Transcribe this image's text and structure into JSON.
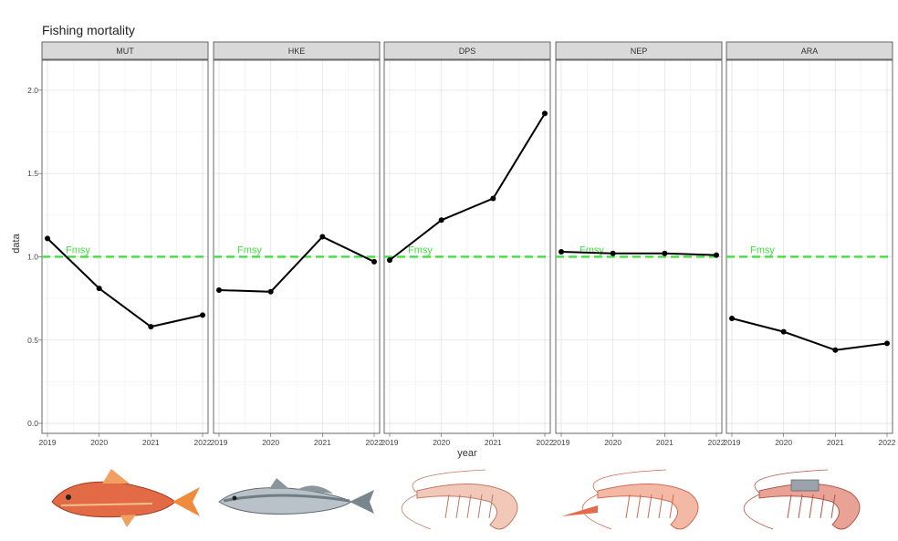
{
  "chart_data": {
    "type": "line",
    "title": "Fishing mortality",
    "xlabel": "year",
    "ylabel": "data",
    "x": [
      2019,
      2020,
      2021,
      2022
    ],
    "xticks": [
      "2019",
      "2020",
      "2021",
      "2022"
    ],
    "ylim": [
      -0.06,
      2.18
    ],
    "yticks": [
      "0.0",
      "0.5",
      "1.0",
      "1.5",
      "2.0"
    ],
    "ytick_values": [
      0.0,
      0.5,
      1.0,
      1.5,
      2.0
    ],
    "grid": true,
    "reference_line": {
      "label": "Fmsy",
      "value": 1.0,
      "color": "#44dd44",
      "style": "dashed"
    },
    "line_color": "#000000",
    "facets": [
      {
        "name": "MUT",
        "values": [
          1.11,
          0.81,
          0.58,
          0.65
        ],
        "species_icon": "red-mullet-fish-icon"
      },
      {
        "name": "HKE",
        "values": [
          0.8,
          0.79,
          1.12,
          0.97
        ],
        "species_icon": "hake-fish-icon"
      },
      {
        "name": "DPS",
        "values": [
          0.98,
          1.22,
          1.35,
          1.86
        ],
        "species_icon": "deep-water-rose-shrimp-icon"
      },
      {
        "name": "NEP",
        "values": [
          1.03,
          1.02,
          1.02,
          1.01
        ],
        "species_icon": "norway-lobster-icon"
      },
      {
        "name": "ARA",
        "values": [
          0.63,
          0.55,
          0.44,
          0.48
        ],
        "species_icon": "red-shrimp-icon"
      }
    ]
  }
}
